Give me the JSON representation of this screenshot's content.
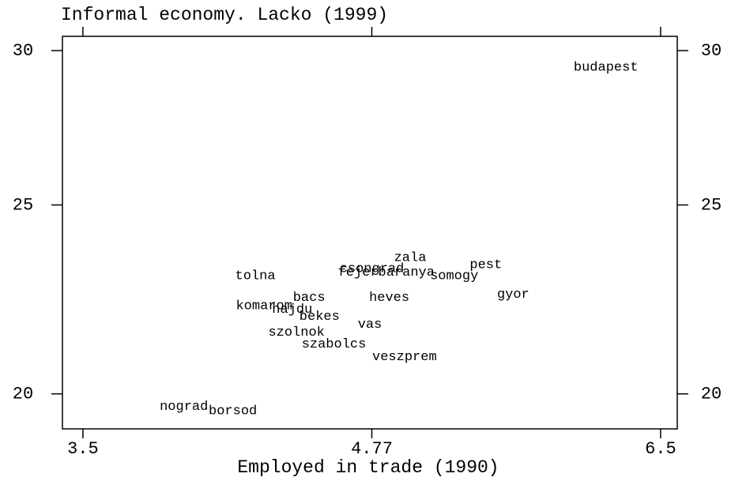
{
  "chart_data": {
    "type": "scatter",
    "title": "Informal economy. Lacko (1999)",
    "xlabel": "Employed in trade (1990)",
    "xlog": true,
    "ylog": true,
    "xlim": [
      3.424,
      6.617
    ],
    "ylim": [
      19.19,
      30.51
    ],
    "xticks": [
      3.5,
      4.77,
      6.5
    ],
    "yticks": [
      20,
      25,
      30
    ],
    "labels": [
      "budapest",
      "pest",
      "gyor",
      "zala",
      "csongrad",
      "fejer",
      "baranya",
      "somogy",
      "tolna",
      "bacs",
      "heves",
      "komarom",
      "hajdu",
      "bekes",
      "vas",
      "szolnok",
      "szabolcs",
      "veszprem",
      "nograd",
      "borsod"
    ],
    "x": [
      6.13,
      5.39,
      5.55,
      4.97,
      4.77,
      4.7,
      4.95,
      5.21,
      4.21,
      4.46,
      4.86,
      4.25,
      4.38,
      4.51,
      4.76,
      4.4,
      4.58,
      4.94,
      3.9,
      4.11
    ],
    "y": [
      29.42,
      23.3,
      22.5,
      23.5,
      23.19,
      23.09,
      23.09,
      23.0,
      23.0,
      22.41,
      22.41,
      22.2,
      22.1,
      21.92,
      21.71,
      21.51,
      21.21,
      20.9,
      19.71,
      19.61
    ]
  }
}
